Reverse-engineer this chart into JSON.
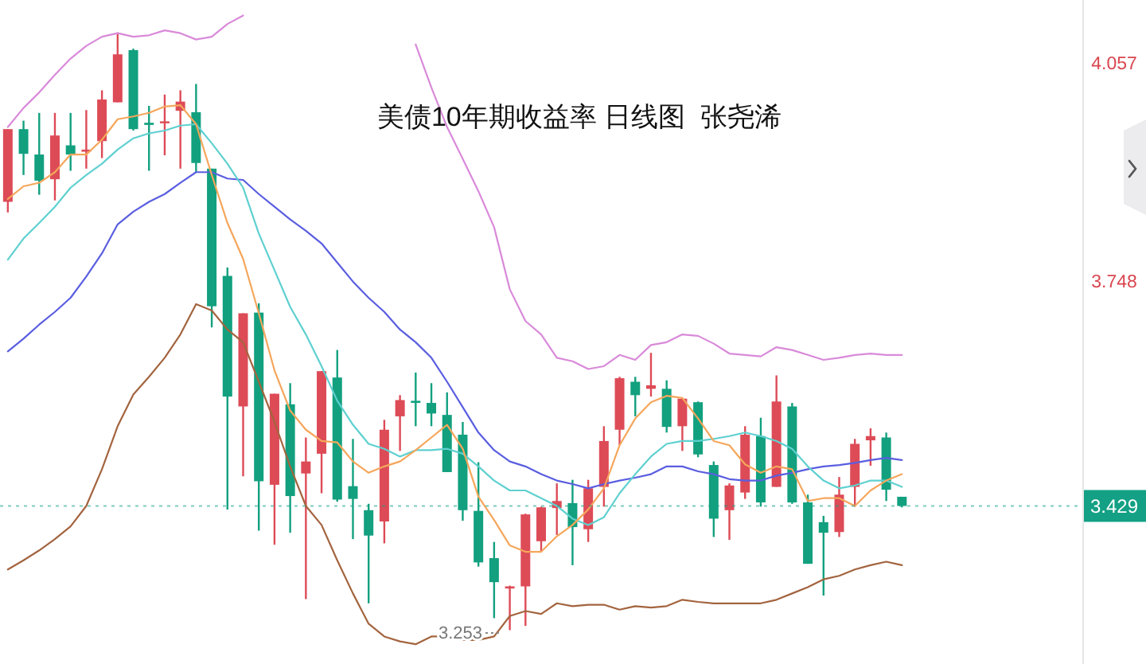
{
  "chart_data": {
    "type": "candlestick",
    "title": "美债10年期收益率 日线图  张尧浠",
    "categories": [
      null,
      null,
      null,
      null,
      null,
      null,
      null,
      null,
      null,
      null,
      null,
      null,
      null,
      null,
      null,
      null,
      null,
      null,
      null,
      null,
      null,
      null,
      null,
      null,
      null,
      null,
      null,
      null,
      null,
      null,
      null,
      null,
      null,
      null,
      null,
      null,
      null,
      null,
      null,
      null,
      null,
      null,
      null,
      null,
      null,
      null,
      null,
      null,
      null,
      null,
      null,
      null,
      null,
      null,
      null,
      null,
      null,
      null
    ],
    "ohlc": [
      [
        3.86,
        3.963,
        3.845,
        3.963
      ],
      [
        3.963,
        3.975,
        3.898,
        3.928
      ],
      [
        3.927,
        3.986,
        3.87,
        3.89
      ],
      [
        3.892,
        3.986,
        3.862,
        3.954
      ],
      [
        3.94,
        3.986,
        3.904,
        3.927
      ],
      [
        3.931,
        3.99,
        3.907,
        3.934
      ],
      [
        3.946,
        4.018,
        3.922,
        4.005
      ],
      [
        4.001,
        4.1,
        4.001,
        4.069
      ],
      [
        4.075,
        4.077,
        3.961,
        3.963
      ],
      [
        3.972,
        3.996,
        3.904,
        3.969
      ],
      [
        3.972,
        4.012,
        3.926,
        3.974
      ],
      [
        3.989,
        4.018,
        3.907,
        4.002
      ],
      [
        3.987,
        4.027,
        3.902,
        3.915
      ],
      [
        3.907,
        3.907,
        3.682,
        3.712
      ],
      [
        3.755,
        3.767,
        3.424,
        3.584
      ],
      [
        3.57,
        3.702,
        3.471,
        3.702
      ],
      [
        3.703,
        3.716,
        3.394,
        3.464
      ],
      [
        3.459,
        3.588,
        3.374,
        3.588
      ],
      [
        3.573,
        3.603,
        3.391,
        3.443
      ],
      [
        3.475,
        3.526,
        3.297,
        3.492
      ],
      [
        3.503,
        3.62,
        3.447,
        3.62
      ],
      [
        3.611,
        3.65,
        3.435,
        3.438
      ],
      [
        3.457,
        3.524,
        3.382,
        3.439
      ],
      [
        3.423,
        3.432,
        3.291,
        3.387
      ],
      [
        3.407,
        3.551,
        3.376,
        3.537
      ],
      [
        3.556,
        3.586,
        3.507,
        3.579
      ],
      [
        3.578,
        3.618,
        3.542,
        3.575
      ],
      [
        3.575,
        3.603,
        3.542,
        3.56
      ],
      [
        3.558,
        3.59,
        3.477,
        3.477
      ],
      [
        3.53,
        3.548,
        3.408,
        3.423
      ],
      [
        3.422,
        3.491,
        3.343,
        3.349
      ],
      [
        3.355,
        3.378,
        3.27,
        3.321
      ],
      [
        3.312,
        3.316,
        3.253,
        3.315
      ],
      [
        3.315,
        3.418,
        3.259,
        3.417
      ],
      [
        3.379,
        3.428,
        3.364,
        3.427
      ],
      [
        3.426,
        3.461,
        3.388,
        3.436
      ],
      [
        3.433,
        3.466,
        3.345,
        3.399
      ],
      [
        3.396,
        3.466,
        3.378,
        3.454
      ],
      [
        3.456,
        3.542,
        3.428,
        3.521
      ],
      [
        3.537,
        3.612,
        3.515,
        3.61
      ],
      [
        3.605,
        3.612,
        3.556,
        3.586
      ],
      [
        3.595,
        3.646,
        3.584,
        3.6
      ],
      [
        3.595,
        3.607,
        3.533,
        3.541
      ],
      [
        3.542,
        3.582,
        3.507,
        3.581
      ],
      [
        3.576,
        3.577,
        3.498,
        3.502
      ],
      [
        3.487,
        3.492,
        3.385,
        3.411
      ],
      [
        3.423,
        3.461,
        3.381,
        3.458
      ],
      [
        3.448,
        3.542,
        3.439,
        3.53
      ],
      [
        3.528,
        3.554,
        3.428,
        3.434
      ],
      [
        3.456,
        3.614,
        3.456,
        3.577
      ],
      [
        3.57,
        3.575,
        3.432,
        3.434
      ],
      [
        3.434,
        3.445,
        3.347,
        3.347
      ],
      [
        3.406,
        3.415,
        3.302,
        3.391
      ],
      [
        3.392,
        3.47,
        3.385,
        3.445
      ],
      [
        3.456,
        3.524,
        3.428,
        3.517
      ],
      [
        3.522,
        3.539,
        3.486,
        3.528
      ],
      [
        3.526,
        3.533,
        3.436,
        3.452
      ],
      [
        3.442,
        3.442,
        3.427,
        3.429
      ]
    ],
    "colors": [
      "#dd4b57",
      "#12a07f",
      "#12a07f",
      "#dd4b57",
      "#12a07f",
      "#dd4b57",
      "#dd4b57",
      "#dd4b57",
      "#12a07f",
      "#12a07f",
      "#dd4b57",
      "#dd4b57",
      "#12a07f",
      "#12a07f",
      "#12a07f",
      "#dd4b57",
      "#12a07f",
      "#dd4b57",
      "#12a07f",
      "#dd4b57",
      "#dd4b57",
      "#12a07f",
      "#12a07f",
      "#12a07f",
      "#dd4b57",
      "#dd4b57",
      "#12a07f",
      "#12a07f",
      "#12a07f",
      "#12a07f",
      "#12a07f",
      "#12a07f",
      "#dd4b57",
      "#dd4b57",
      "#dd4b57",
      "#dd4b57",
      "#12a07f",
      "#dd4b57",
      "#dd4b57",
      "#dd4b57",
      "#12a07f",
      "#dd4b57",
      "#12a07f",
      "#dd4b57",
      "#12a07f",
      "#12a07f",
      "#dd4b57",
      "#dd4b57",
      "#12a07f",
      "#dd4b57",
      "#12a07f",
      "#12a07f",
      "#12a07f",
      "#dd4b57",
      "#dd4b57",
      "#dd4b57",
      "#12a07f",
      "#12a07f"
    ],
    "series": [
      {
        "type": "line",
        "color": "#d98ad9",
        "values": [
          3.966,
          3.993,
          4.015,
          4.04,
          4.063,
          4.081,
          4.094,
          4.099,
          4.094,
          4.096,
          4.103,
          4.099,
          4.09,
          4.094,
          4.112,
          4.124,
          null,
          null,
          null,
          null,
          null,
          null,
          null,
          null,
          null,
          null,
          4.083,
          4.022,
          3.966,
          3.921,
          3.875,
          3.824,
          3.736,
          3.691,
          3.672,
          3.639,
          3.634,
          3.623,
          3.627,
          3.643,
          3.636,
          3.657,
          3.661,
          3.672,
          3.67,
          3.659,
          3.645,
          3.643,
          3.641,
          3.654,
          3.65,
          3.643,
          3.636,
          3.639,
          3.643,
          3.645,
          3.643,
          3.643
        ]
      },
      {
        "type": "line",
        "color": "#5a5ee0",
        "values": [
          3.648,
          3.666,
          3.686,
          3.704,
          3.724,
          3.754,
          3.787,
          3.828,
          3.846,
          3.86,
          3.871,
          3.887,
          3.902,
          3.902,
          3.893,
          3.891,
          3.871,
          3.853,
          3.835,
          3.819,
          3.801,
          3.774,
          3.747,
          3.724,
          3.704,
          3.679,
          3.661,
          3.639,
          3.605,
          3.569,
          3.533,
          3.508,
          3.492,
          3.485,
          3.474,
          3.465,
          3.46,
          3.454,
          3.46,
          3.465,
          3.469,
          3.474,
          3.485,
          3.485,
          3.478,
          3.474,
          3.467,
          3.465,
          3.465,
          3.472,
          3.476,
          3.481,
          3.485,
          3.487,
          3.49,
          3.494,
          3.497,
          3.494
        ]
      },
      {
        "type": "line",
        "color": "#5fd0d0",
        "values": [
          3.778,
          3.808,
          3.83,
          3.853,
          3.88,
          3.898,
          3.914,
          3.934,
          3.95,
          3.957,
          3.961,
          3.968,
          3.97,
          3.943,
          3.914,
          3.88,
          3.815,
          3.763,
          3.711,
          3.672,
          3.627,
          3.578,
          3.544,
          3.517,
          3.51,
          3.499,
          3.508,
          3.508,
          3.51,
          3.503,
          3.485,
          3.465,
          3.451,
          3.451,
          3.44,
          3.429,
          3.411,
          3.402,
          3.413,
          3.447,
          3.474,
          3.499,
          3.517,
          3.521,
          3.521,
          3.524,
          3.528,
          3.533,
          3.528,
          3.521,
          3.51,
          3.485,
          3.465,
          3.454,
          3.458,
          3.465,
          3.465,
          3.456
        ]
      },
      {
        "type": "line",
        "color": "#f5a65b",
        "values": [
          3.864,
          3.882,
          3.887,
          3.902,
          3.927,
          3.927,
          3.948,
          3.977,
          3.981,
          3.986,
          3.995,
          3.997,
          3.97,
          3.898,
          3.83,
          3.779,
          3.702,
          3.621,
          3.564,
          3.537,
          3.521,
          3.519,
          3.492,
          3.476,
          3.485,
          3.492,
          3.508,
          3.526,
          3.544,
          3.51,
          3.442,
          3.409,
          3.373,
          3.364,
          3.364,
          3.386,
          3.402,
          3.424,
          3.454,
          3.515,
          3.553,
          3.576,
          3.585,
          3.582,
          3.553,
          3.521,
          3.515,
          3.488,
          3.476,
          3.485,
          3.481,
          3.436,
          3.44,
          3.44,
          3.429,
          3.451,
          3.465,
          3.474
        ]
      },
      {
        "type": "line",
        "color": "#a3643f",
        "values": [
          3.339,
          3.352,
          3.366,
          3.382,
          3.4,
          3.429,
          3.481,
          3.542,
          3.587,
          3.612,
          3.639,
          3.672,
          3.715,
          3.706,
          3.679,
          3.661,
          3.605,
          3.548,
          3.485,
          3.429,
          3.402,
          3.352,
          3.305,
          3.262,
          3.244,
          3.237,
          3.233,
          3.244,
          3.244,
          3.239,
          3.239,
          3.244,
          3.273,
          3.28,
          3.276,
          3.291,
          3.287,
          3.289,
          3.289,
          3.282,
          3.287,
          3.285,
          3.287,
          3.296,
          3.293,
          3.291,
          3.291,
          3.291,
          3.291,
          3.296,
          3.305,
          3.314,
          3.325,
          3.33,
          3.339,
          3.345,
          3.35,
          3.345
        ]
      }
    ],
    "ylim": [
      3.205,
      4.146
    ],
    "yticks": [
      4.057,
      3.748
    ],
    "tick_labels": "y",
    "ref_lines": [
      {
        "axis": "y",
        "value": 3.429,
        "label": "3.429",
        "color": "#13a085",
        "line_style": "dotted"
      }
    ],
    "annotations": [
      "3.253"
    ]
  }
}
